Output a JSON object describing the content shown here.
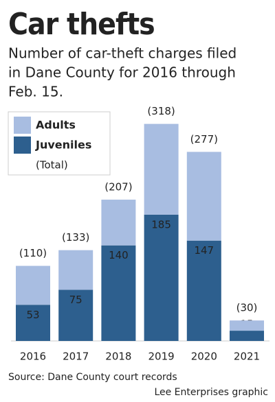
{
  "chart_data": {
    "type": "stacked_bar",
    "title": "Car thefts",
    "subtitle": [
      "Number of car-theft charges filed",
      "in Dane County for 2016 through",
      "Feb. 15."
    ],
    "categories": [
      "2016",
      "2017",
      "2018",
      "2019",
      "2020",
      "2021"
    ],
    "series": [
      {
        "name": "Juveniles",
        "color": "#2d5f8e",
        "values": [
          53,
          75,
          140,
          185,
          147,
          15
        ]
      },
      {
        "name": "Adults",
        "color": "#a8bde1",
        "values": [
          57,
          58,
          67,
          133,
          130,
          15
        ]
      }
    ],
    "totals": {
      "name": "(Total)",
      "values": [
        110,
        133,
        207,
        318,
        277,
        30
      ],
      "value_labels": [
        "(110)",
        "(133)",
        "(207)",
        "(318)",
        "(277)",
        "(30)"
      ]
    },
    "source": "Source: Dane County court records",
    "credit": "Lee Enterprises graphic"
  }
}
